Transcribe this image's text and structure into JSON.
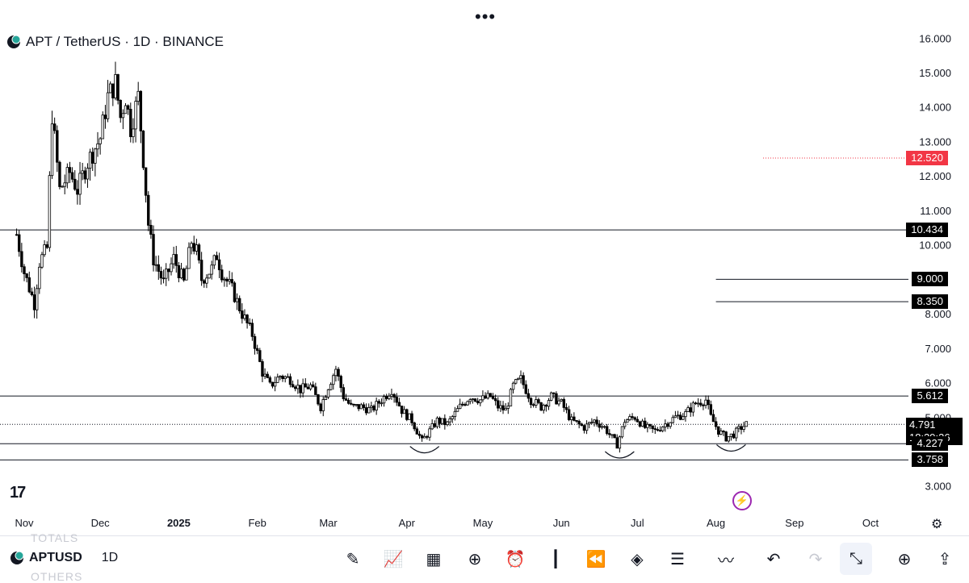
{
  "header": {
    "title": "APT / TetherUS · 1D · BINANCE",
    "more_icon": "more-dots-icon"
  },
  "chart_data": {
    "type": "candlestick",
    "ylim": [
      2.7,
      16.4
    ],
    "y_ticks": [
      "3.000",
      "5.000",
      "6.000",
      "7.000",
      "8.000",
      "10.000",
      "11.000",
      "12.000",
      "13.000",
      "14.000",
      "15.000",
      "16.000"
    ],
    "x_labels": [
      {
        "label": "Nov",
        "date": "2024-11-01"
      },
      {
        "label": "Dec",
        "date": "2024-12-01"
      },
      {
        "label": "2025",
        "date": "2025-01-01"
      },
      {
        "label": "Feb",
        "date": "2025-02-01"
      },
      {
        "label": "Mar",
        "date": "2025-03-01"
      },
      {
        "label": "Apr",
        "date": "2025-04-01"
      },
      {
        "label": "May",
        "date": "2025-05-01"
      },
      {
        "label": "Jun",
        "date": "2025-06-01"
      },
      {
        "label": "Jul",
        "date": "2025-07-01"
      },
      {
        "label": "Aug",
        "date": "2025-08-01"
      },
      {
        "label": "Sep",
        "date": "2025-09-01"
      },
      {
        "label": "Oct",
        "date": "2025-10-01"
      }
    ],
    "price_path": [
      [
        "2024-10-29",
        10.3
      ],
      [
        "2024-11-01",
        9.2
      ],
      [
        "2024-11-05",
        8.3
      ],
      [
        "2024-11-07",
        9.5
      ],
      [
        "2024-11-10",
        9.9
      ],
      [
        "2024-11-12",
        13.8
      ],
      [
        "2024-11-15",
        11.6
      ],
      [
        "2024-11-19",
        12.1
      ],
      [
        "2024-11-22",
        11.6
      ],
      [
        "2024-11-26",
        12.4
      ],
      [
        "2024-12-01",
        13.1
      ],
      [
        "2024-12-04",
        14.3
      ],
      [
        "2024-12-07",
        14.7
      ],
      [
        "2024-12-09",
        13.7
      ],
      [
        "2024-12-11",
        14.3
      ],
      [
        "2024-12-13",
        13.4
      ],
      [
        "2024-12-16",
        14.3
      ],
      [
        "2024-12-18",
        12.5
      ],
      [
        "2024-12-20",
        10.6
      ],
      [
        "2024-12-22",
        9.6
      ],
      [
        "2024-12-26",
        8.9
      ],
      [
        "2024-12-30",
        9.6
      ],
      [
        "2025-01-03",
        8.9
      ],
      [
        "2025-01-06",
        10.1
      ],
      [
        "2025-01-08",
        9.8
      ],
      [
        "2025-01-10",
        9.0
      ],
      [
        "2025-01-14",
        9.3
      ],
      [
        "2025-01-16",
        9.7
      ],
      [
        "2025-01-18",
        9.2
      ],
      [
        "2025-01-22",
        8.7
      ],
      [
        "2025-01-26",
        8.0
      ],
      [
        "2025-01-30",
        7.4
      ],
      [
        "2025-02-03",
        6.3
      ],
      [
        "2025-02-06",
        5.9
      ],
      [
        "2025-02-10",
        6.2
      ],
      [
        "2025-02-14",
        6.1
      ],
      [
        "2025-02-18",
        5.8
      ],
      [
        "2025-02-22",
        5.9
      ],
      [
        "2025-02-26",
        5.3
      ],
      [
        "2025-03-01",
        5.9
      ],
      [
        "2025-03-04",
        6.4
      ],
      [
        "2025-03-07",
        5.6
      ],
      [
        "2025-03-10",
        5.3
      ],
      [
        "2025-03-14",
        5.3
      ],
      [
        "2025-03-18",
        5.2
      ],
      [
        "2025-03-22",
        5.5
      ],
      [
        "2025-03-26",
        5.8
      ],
      [
        "2025-03-30",
        5.2
      ],
      [
        "2025-04-03",
        4.9
      ],
      [
        "2025-04-07",
        4.3
      ],
      [
        "2025-04-10",
        4.6
      ],
      [
        "2025-04-13",
        4.9
      ],
      [
        "2025-04-17",
        4.8
      ],
      [
        "2025-04-22",
        5.3
      ],
      [
        "2025-04-26",
        5.6
      ],
      [
        "2025-04-30",
        5.5
      ],
      [
        "2025-05-04",
        5.6
      ],
      [
        "2025-05-07",
        5.3
      ],
      [
        "2025-05-10",
        5.2
      ],
      [
        "2025-05-13",
        5.9
      ],
      [
        "2025-05-16",
        6.1
      ],
      [
        "2025-05-20",
        5.5
      ],
      [
        "2025-05-24",
        5.3
      ],
      [
        "2025-05-28",
        5.6
      ],
      [
        "2025-06-01",
        5.4
      ],
      [
        "2025-06-05",
        4.9
      ],
      [
        "2025-06-10",
        4.7
      ],
      [
        "2025-06-14",
        4.9
      ],
      [
        "2025-06-18",
        4.7
      ],
      [
        "2025-06-21",
        4.4
      ],
      [
        "2025-06-23",
        4.2
      ],
      [
        "2025-06-26",
        4.9
      ],
      [
        "2025-06-30",
        5.0
      ],
      [
        "2025-07-04",
        4.7
      ],
      [
        "2025-07-08",
        4.6
      ],
      [
        "2025-07-12",
        4.8
      ],
      [
        "2025-07-16",
        5.0
      ],
      [
        "2025-07-20",
        5.1
      ],
      [
        "2025-07-24",
        5.4
      ],
      [
        "2025-07-28",
        5.5
      ],
      [
        "2025-07-30",
        5.0
      ],
      [
        "2025-08-02",
        4.6
      ],
      [
        "2025-08-05",
        4.4
      ],
      [
        "2025-08-08",
        4.5
      ],
      [
        "2025-08-11",
        4.7
      ],
      [
        "2025-08-13",
        4.79
      ]
    ],
    "horizontal_lines": [
      {
        "value": 10.434,
        "label": "10.434"
      },
      {
        "value": 5.612,
        "label": "5.612"
      },
      {
        "value": 4.227,
        "label": "4.227"
      },
      {
        "value": 3.758,
        "label": "3.758"
      }
    ],
    "short_lines": [
      {
        "value": 9.0,
        "label": "9.000",
        "from": "2025-08-01"
      },
      {
        "value": 8.35,
        "label": "8.350",
        "from": "2025-08-01"
      }
    ],
    "high_marker": {
      "value": 12.52,
      "label": "12.520",
      "color": "#f23645"
    },
    "current_price": {
      "value": 4.791,
      "label": "4.791",
      "countdown": "18:39:36"
    },
    "bottom_arcs": [
      {
        "date": "2025-04-08",
        "value": 4.15
      },
      {
        "date": "2025-06-24",
        "value": 4.0
      },
      {
        "date": "2025-08-07",
        "value": 4.2
      }
    ]
  },
  "tv_logo": "17",
  "bottom_bar": {
    "symbol": "APTUSDT",
    "symbol_display": "APTUSD",
    "timeframe": "1D",
    "ghost_top": "TOTALS",
    "ghost_bottom": "OTHERS",
    "tools": [
      {
        "name": "draw-icon",
        "glyph": "✎"
      },
      {
        "name": "indicators-icon",
        "glyph": "📈"
      },
      {
        "name": "templates-icon",
        "glyph": "▦"
      },
      {
        "name": "add-icon",
        "glyph": "⊕"
      },
      {
        "name": "alert-icon",
        "glyph": "⏰"
      },
      {
        "name": "candles-icon",
        "glyph": "┃"
      },
      {
        "name": "replay-icon",
        "glyph": "⏪"
      },
      {
        "name": "layers-icon",
        "glyph": "◈"
      },
      {
        "name": "settings-sliders-icon",
        "glyph": "☰"
      },
      {
        "name": "trend-icon",
        "glyph": "〰"
      },
      {
        "name": "undo-icon",
        "glyph": "↶"
      },
      {
        "name": "redo-icon",
        "glyph": "↷"
      },
      {
        "name": "collapse-icon",
        "glyph": "⤡"
      },
      {
        "name": "chat-add-icon",
        "glyph": "⊕"
      },
      {
        "name": "share-icon",
        "glyph": "⇪"
      }
    ]
  }
}
